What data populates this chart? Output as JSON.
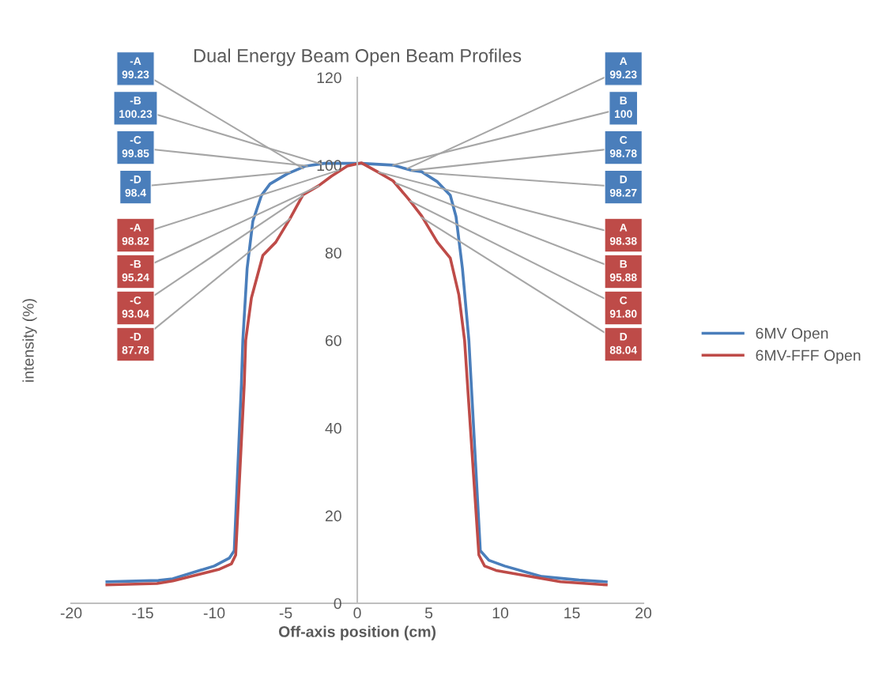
{
  "chart_data": {
    "type": "line",
    "title": "Dual Energy Beam Open Beam Profiles",
    "xlabel": "Off-axis position (cm)",
    "ylabel": "intensity (%)",
    "xlim": [
      -20,
      20
    ],
    "ylim": [
      0,
      120
    ],
    "xticks": [
      -20,
      -15,
      -10,
      -5,
      0,
      5,
      10,
      15,
      20
    ],
    "yticks": [
      0,
      20,
      40,
      60,
      80,
      100,
      120
    ],
    "grid": false,
    "legend": "right",
    "marker": "none",
    "line_style": "solid",
    "series": [
      {
        "name": "6MV Open",
        "color": "#4a7ebb",
        "x": [
          -17.5,
          -13.9,
          -12.9,
          -10,
          -8.95,
          -8.6,
          -8.1,
          -8.0,
          -7.7,
          -7.3,
          -6.7,
          -6.1,
          -4.9,
          -3.6,
          -2.3,
          0.3,
          2.5,
          3.8,
          4.5,
          5.6,
          6.5,
          6.9,
          7.35,
          7.8,
          8.6,
          9.2,
          10.3,
          12.9,
          15.5,
          17.4
        ],
        "values": [
          4.9,
          5.2,
          5.6,
          8.5,
          10.3,
          12,
          50,
          60,
          76.4,
          87.2,
          93.1,
          95.7,
          98,
          99.8,
          100.4,
          100.4,
          100,
          98.8,
          98.5,
          96.2,
          93.1,
          88.3,
          76.4,
          60,
          12,
          9.8,
          8.5,
          6.1,
          5.3,
          4.9
        ]
      },
      {
        "name": "6MV-FFF Open",
        "color": "#be4b48",
        "x": [
          -17.5,
          -14,
          -12.9,
          -9.7,
          -8.8,
          -8.5,
          -7.9,
          -7.8,
          -7.4,
          -6.6,
          -5.7,
          -4.7,
          -3.8,
          -2.7,
          -1.8,
          -0.7,
          0.3,
          1.4,
          2.5,
          3.6,
          4.5,
          5.6,
          6.5,
          7.1,
          7.5,
          8.5,
          8.9,
          9.7,
          14.2,
          17.4
        ],
        "values": [
          4.2,
          4.5,
          5.1,
          7.7,
          9.0,
          11,
          50,
          60,
          69.7,
          79.4,
          82.4,
          87.8,
          93.2,
          95.3,
          97.5,
          99.8,
          100.5,
          98.5,
          96.4,
          92.2,
          88.4,
          82.4,
          78.8,
          70.4,
          60,
          11,
          8.5,
          7.5,
          4.9,
          4.2
        ]
      }
    ],
    "annotations": [
      {
        "text": "-A\n99.23",
        "x": -3.8,
        "y": 99.23
      },
      {
        "text": "-B\n100.23",
        "x": -2.5,
        "y": 100.23
      },
      {
        "text": "-C\n99.85",
        "x": -3.5,
        "y": 99.85
      },
      {
        "text": "-D\n98.4",
        "x": -4.7,
        "y": 98.4
      },
      {
        "text": "-A\n98.82",
        "x": -1.3,
        "y": 98.82
      },
      {
        "text": "-B\n95.24",
        "x": -2.7,
        "y": 95.24
      },
      {
        "text": "-C\n93.04",
        "x": -3.8,
        "y": 93.04
      },
      {
        "text": "-D\n87.78",
        "x": -4.7,
        "y": 87.78
      },
      {
        "text": "A\n99.23",
        "x": 3.5,
        "y": 99.23
      },
      {
        "text": "B\n100",
        "x": 2.5,
        "y": 100
      },
      {
        "text": "C\n98.78",
        "x": 3.8,
        "y": 98.78
      },
      {
        "text": "D\n98.27",
        "x": 4.7,
        "y": 98.27
      },
      {
        "text": "A\n98.38",
        "x": 1.5,
        "y": 98.38
      },
      {
        "text": "B\n95.88",
        "x": 2.7,
        "y": 95.88
      },
      {
        "text": "C\n91.80",
        "x": 3.7,
        "y": 91.8
      },
      {
        "text": "D\n88.04",
        "x": 4.5,
        "y": 88.04
      }
    ]
  }
}
